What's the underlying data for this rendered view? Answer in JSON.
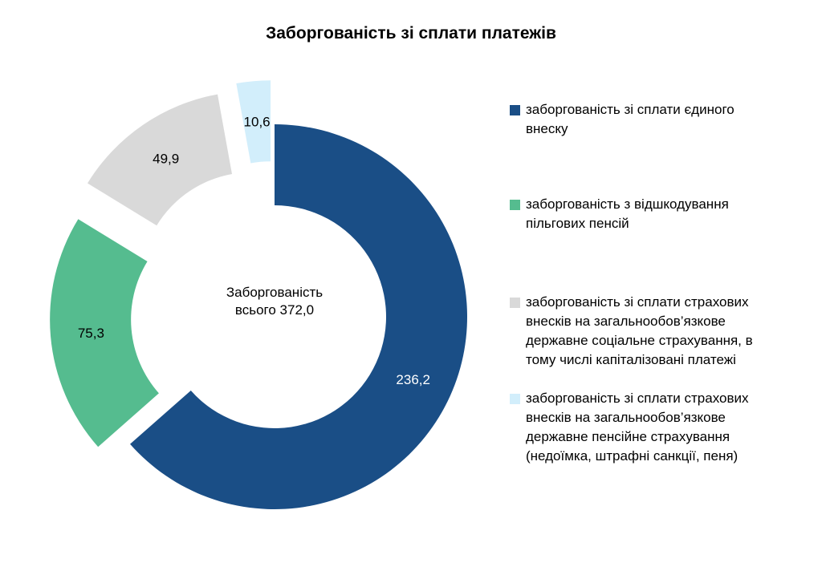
{
  "chart_data": {
    "type": "pie",
    "title": "Заборгованість зі сплати платежів",
    "center_label": "Заборгованість\nвсього 372,0",
    "slices": [
      {
        "label": "заборгованість зі сплати єдиного\nвнеску",
        "value": 236.2,
        "display": "236,2",
        "color": "#1a4e86",
        "label_color": "#ffffff"
      },
      {
        "label": "заборгованість з відшкодування\nпільгових пенсій",
        "value": 75.3,
        "display": "75,3",
        "color": "#55bc8f",
        "label_color": "#000000"
      },
      {
        "label": "заборгованість зі сплати страхових\nвнесків на загальнообов’язкове\nдержавне соціальне страхування, в\nтому числі капіталізовані платежі",
        "value": 49.9,
        "display": "49,9",
        "color": "#d9d9d9",
        "label_color": "#000000"
      },
      {
        "label": "заборгованість зі сплати страхових\nвнесків на загальнообов’язкове\nдержавне пенсійне  страхування\n(недоїмка, штрафні санкції, пеня)",
        "value": 10.6,
        "display": "10,6",
        "color": "#d2eefb",
        "label_color": "#000000"
      }
    ],
    "legend_position": "right"
  }
}
